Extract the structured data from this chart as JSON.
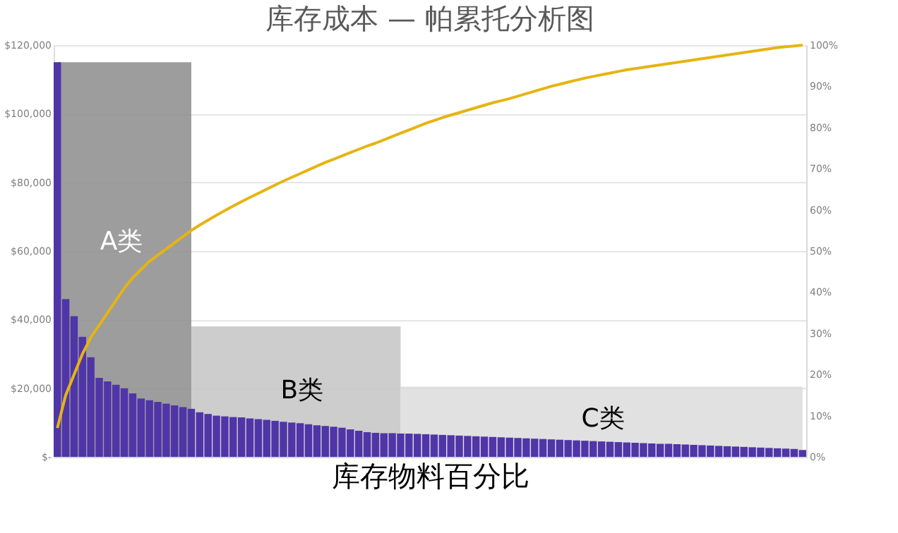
{
  "chart_data": {
    "type": "bar",
    "title": "库存成本 — 帕累托分析图",
    "xlabel": "库存物料百分比",
    "categories": [
      null,
      null,
      null,
      null,
      null,
      null,
      null,
      null,
      null,
      null,
      null,
      null,
      null,
      null,
      null,
      null,
      null,
      null,
      null,
      null,
      null,
      null,
      null,
      null,
      null,
      null,
      null,
      null,
      null,
      null,
      null,
      null,
      null,
      null,
      null,
      null,
      null,
      null,
      null,
      null,
      null,
      null,
      null,
      null,
      null,
      null,
      null,
      null,
      null,
      null,
      null,
      null,
      null,
      null,
      null,
      null,
      null,
      null,
      null,
      null,
      null,
      null,
      null,
      null,
      null,
      null,
      null,
      null,
      null,
      null,
      null,
      null,
      null,
      null,
      null,
      null,
      null,
      null,
      null,
      null,
      null,
      null,
      null,
      null,
      null,
      null,
      null,
      null,
      null,
      null
    ],
    "series": [
      {
        "color": "#4f35a8",
        "values": [
          115000,
          46000,
          41000,
          35000,
          29000,
          23000,
          22000,
          21000,
          20000,
          18500,
          17000,
          16500,
          16000,
          15500,
          15000,
          14500,
          14000,
          13000,
          12500,
          12000,
          11800,
          11600,
          11500,
          11200,
          11000,
          10800,
          10500,
          10200,
          10000,
          9800,
          9500,
          9200,
          9000,
          8800,
          8500,
          8000,
          7600,
          7200,
          7000,
          6900,
          6900,
          6800,
          6800,
          6700,
          6600,
          6500,
          6400,
          6300,
          6200,
          6100,
          6000,
          5900,
          5800,
          5700,
          5600,
          5500,
          5400,
          5300,
          5200,
          5100,
          5000,
          4900,
          4800,
          4700,
          4600,
          4500,
          4400,
          4300,
          4200,
          4100,
          4000,
          3900,
          3800,
          3800,
          3700,
          3600,
          3500,
          3400,
          3300,
          3200,
          3100,
          3000,
          2900,
          2800,
          2700,
          2600,
          2500,
          2400,
          2300,
          2000
        ]
      },
      {
        "type": "area",
        "color": "#8c8c8c",
        "values": [
          115000,
          115000,
          115000,
          115000,
          115000,
          115000,
          115000,
          115000,
          115000,
          115000,
          115000,
          115000,
          115000,
          115000,
          115000,
          115000,
          115000,
          null,
          null,
          null,
          null,
          null,
          null,
          null,
          null,
          null,
          null,
          null,
          null,
          null,
          null,
          null,
          null,
          null,
          null,
          null,
          null,
          null,
          null,
          null,
          null,
          null,
          null,
          null,
          null,
          null,
          null,
          null,
          null,
          null,
          null,
          null,
          null,
          null,
          null,
          null,
          null,
          null,
          null,
          null,
          null,
          null,
          null,
          null,
          null,
          null,
          null,
          null,
          null,
          null,
          null,
          null,
          null,
          null,
          null,
          null,
          null,
          null,
          null,
          null,
          null,
          null,
          null,
          null,
          null,
          null,
          null,
          null,
          null,
          null
        ]
      },
      {
        "type": "area",
        "color": "#c4c4c4",
        "values": [
          null,
          null,
          null,
          null,
          null,
          null,
          null,
          null,
          null,
          null,
          null,
          null,
          null,
          null,
          null,
          null,
          38000,
          38000,
          38000,
          38000,
          38000,
          38000,
          38000,
          38000,
          38000,
          38000,
          38000,
          38000,
          38000,
          38000,
          38000,
          38000,
          38000,
          38000,
          38000,
          38000,
          38000,
          38000,
          38000,
          38000,
          38000,
          38000,
          null,
          null,
          null,
          null,
          null,
          null,
          null,
          null,
          null,
          null,
          null,
          null,
          null,
          null,
          null,
          null,
          null,
          null,
          null,
          null,
          null,
          null,
          null,
          null,
          null,
          null,
          null,
          null,
          null,
          null,
          null,
          null,
          null,
          null,
          null,
          null,
          null,
          null,
          null,
          null,
          null,
          null,
          null,
          null,
          null,
          null,
          null,
          null
        ]
      },
      {
        "type": "area",
        "color": "#dcdcdc",
        "values": [
          null,
          null,
          null,
          null,
          null,
          null,
          null,
          null,
          null,
          null,
          null,
          null,
          null,
          null,
          null,
          null,
          null,
          null,
          null,
          null,
          null,
          null,
          null,
          null,
          null,
          null,
          null,
          null,
          null,
          null,
          null,
          null,
          null,
          null,
          null,
          null,
          null,
          null,
          null,
          null,
          null,
          20500,
          20500,
          20500,
          20500,
          20500,
          20500,
          20500,
          20500,
          20500,
          20500,
          20500,
          20500,
          20500,
          20500,
          20500,
          20500,
          20500,
          20500,
          20500,
          20500,
          20500,
          20500,
          20500,
          20500,
          20500,
          20500,
          20500,
          20500,
          20500,
          20500,
          20500,
          20500,
          20500,
          20500,
          20500,
          20500,
          20500,
          20500,
          20500,
          20500,
          20500,
          20500,
          20500,
          20500,
          20500,
          20500,
          20500,
          20500,
          20500
        ]
      },
      {
        "type": "line",
        "axis": "y2",
        "color": "#e6b412",
        "values": [
          7,
          15,
          20,
          25,
          29,
          32,
          35,
          38,
          41,
          43.5,
          45.5,
          47.5,
          49,
          50.5,
          52,
          53.5,
          55,
          56.3,
          57.5,
          58.7,
          59.8,
          60.9,
          62,
          63,
          64,
          65,
          66,
          67,
          67.9,
          68.8,
          69.7,
          70.6,
          71.5,
          72.3,
          73.1,
          73.9,
          74.7,
          75.5,
          76.2,
          77,
          77.8,
          78.6,
          79.4,
          80.2,
          81,
          81.7,
          82.4,
          83,
          83.6,
          84.2,
          84.8,
          85.4,
          86,
          86.5,
          87,
          87.6,
          88.2,
          88.8,
          89.4,
          90,
          90.5,
          91,
          91.5,
          92,
          92.4,
          92.8,
          93.2,
          93.6,
          94,
          94.3,
          94.6,
          94.9,
          95.2,
          95.5,
          95.8,
          96.1,
          96.4,
          96.7,
          97,
          97.3,
          97.6,
          97.9,
          98.2,
          98.5,
          98.8,
          99.1,
          99.4,
          99.6,
          99.8,
          100
        ]
      }
    ],
    "ylim": [
      0,
      120000
    ],
    "yticks": [
      {
        "value": 0,
        "label": "$-"
      },
      {
        "value": 20000,
        "label": "$20,000"
      },
      {
        "value": 40000,
        "label": "$40,000"
      },
      {
        "value": 60000,
        "label": "$60,000"
      },
      {
        "value": 80000,
        "label": "$80,000"
      },
      {
        "value": 100000,
        "label": "$100,000"
      },
      {
        "value": 120000,
        "label": "$120,000"
      }
    ],
    "y2lim": [
      0,
      100
    ],
    "y2ticks": [
      {
        "value": 0,
        "label": "0%"
      },
      {
        "value": 10,
        "label": "10%"
      },
      {
        "value": 20,
        "label": "20%"
      },
      {
        "value": 30,
        "label": "30%"
      },
      {
        "value": 40,
        "label": "40%"
      },
      {
        "value": 50,
        "label": "50%"
      },
      {
        "value": 60,
        "label": "60%"
      },
      {
        "value": 70,
        "label": "70%"
      },
      {
        "value": 80,
        "label": "80%"
      },
      {
        "value": 90,
        "label": "90%"
      },
      {
        "value": 100,
        "label": "100%"
      }
    ],
    "annotations": [
      "A类",
      "B类",
      "C类"
    ],
    "grid": "y",
    "tick_labels": "y",
    "line_style": "solid",
    "marker": "none"
  }
}
